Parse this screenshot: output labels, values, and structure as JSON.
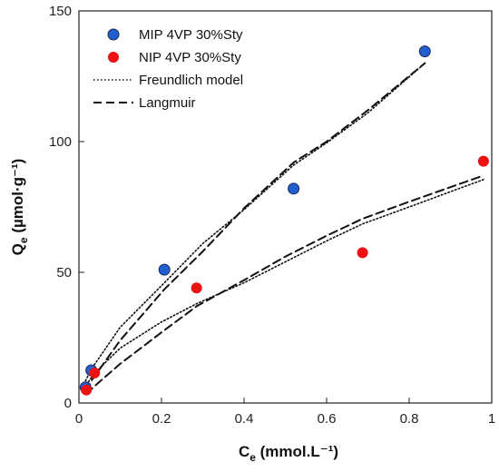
{
  "chart_data": {
    "type": "scatter",
    "xlabel": {
      "main": "C",
      "sub": "e",
      "unit": " (mmol.L⁻¹)"
    },
    "ylabel": {
      "main": "Q",
      "sub": "e",
      "unit": " (µmol·g⁻¹)"
    },
    "xlim": [
      0,
      1
    ],
    "ylim": [
      0,
      150
    ],
    "xticks": [
      0,
      0.2,
      0.4,
      0.6,
      0.8,
      1
    ],
    "xtick_labels": [
      "0",
      "0.2",
      "0.4",
      "0.6",
      "0.8",
      "1"
    ],
    "yticks": [
      0,
      50,
      100,
      150
    ],
    "ytick_labels": [
      "0",
      "50",
      "100",
      "150"
    ],
    "grid": false,
    "legend_position": "top-left",
    "series": [
      {
        "name": "MIP 4VP 30%Sty",
        "kind": "points",
        "color": "#1f5fcf",
        "x": [
          0.016,
          0.03,
          0.207,
          0.52,
          0.838
        ],
        "y": [
          6,
          12.5,
          51,
          82,
          134.5
        ]
      },
      {
        "name": "NIP 4VP 30%Sty",
        "kind": "points",
        "color": "#ee1111",
        "x": [
          0.018,
          0.038,
          0.285,
          0.687,
          0.98
        ],
        "y": [
          5,
          11.5,
          44,
          57.5,
          92.5
        ]
      },
      {
        "name": "Freundlich model",
        "kind": "line",
        "style": "dotted",
        "color": "#111111",
        "curves": [
          {
            "x": [
              0.016,
              0.03,
              0.1,
              0.207,
              0.3,
              0.4,
              0.52,
              0.6,
              0.7,
              0.838
            ],
            "y": [
              8.5,
              13,
              29,
              46,
              61,
              74,
              91,
              99.5,
              111,
              130
            ]
          },
          {
            "x": [
              0.018,
              0.038,
              0.1,
              0.2,
              0.285,
              0.4,
              0.5,
              0.6,
              0.687,
              0.8,
              0.98
            ],
            "y": [
              7,
              11.5,
              21,
              31,
              38,
              46,
              54,
              62,
              68.5,
              75,
              85.5
            ]
          }
        ]
      },
      {
        "name": "Langmuir",
        "kind": "line",
        "style": "dashed",
        "color": "#111111",
        "curves": [
          {
            "x": [
              0.016,
              0.03,
              0.1,
              0.207,
              0.3,
              0.4,
              0.52,
              0.6,
              0.7,
              0.838
            ],
            "y": [
              4.5,
              8.5,
              24,
              43.5,
              58,
              74.5,
              92,
              100,
              112,
              130
            ]
          },
          {
            "x": [
              0.018,
              0.038,
              0.1,
              0.2,
              0.285,
              0.4,
              0.5,
              0.6,
              0.687,
              0.8,
              0.98
            ],
            "y": [
              3.5,
              6.5,
              15,
              27,
              37,
              47,
              56,
              64,
              70.5,
              77,
              87
            ]
          }
        ]
      }
    ]
  }
}
